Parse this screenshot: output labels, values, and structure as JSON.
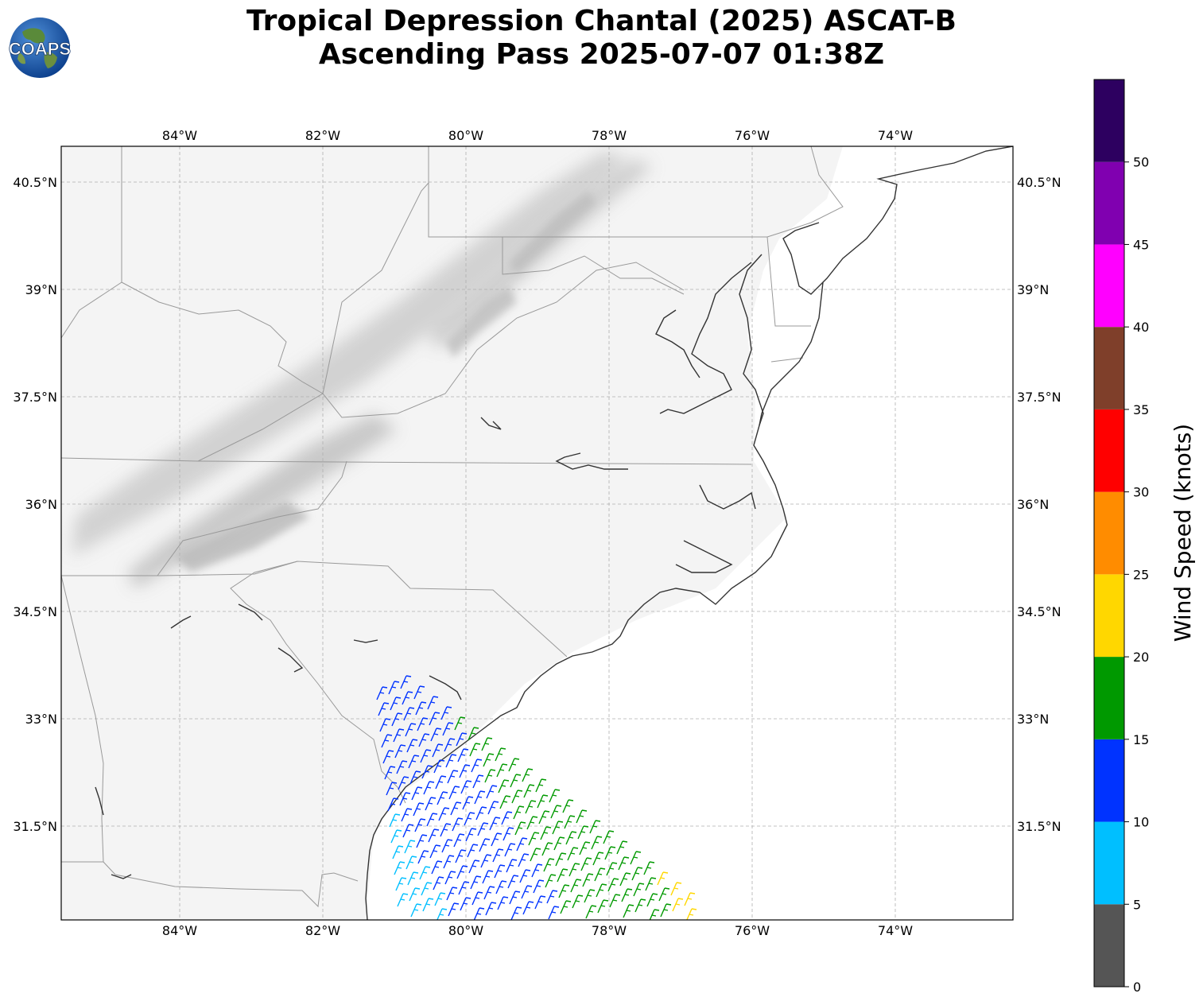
{
  "title": {
    "line1": "Tropical Depression Chantal (2025) ASCAT-B",
    "line2": "Ascending Pass 2025-07-07 01:38Z"
  },
  "logo": {
    "text": "COAPS"
  },
  "map": {
    "lon_range": [
      -85.65,
      -72.35
    ],
    "lat_range": [
      29.65,
      40.75
    ],
    "lon_ticks": [
      "84°W",
      "82°W",
      "80°W",
      "78°W",
      "76°W",
      "74°W"
    ],
    "lat_ticks": [
      "40.5°N",
      "39°N",
      "37.5°N",
      "36°N",
      "34.5°N",
      "33°N",
      "31.5°N"
    ],
    "gridlines": true
  },
  "colorbar": {
    "label": "Wind Speed (knots)",
    "ticks": [
      "0",
      "5",
      "10",
      "15",
      "20",
      "25",
      "30",
      "35",
      "40",
      "45",
      "50"
    ],
    "bins": [
      {
        "from": 0,
        "to": 5,
        "color": "#555555"
      },
      {
        "from": 5,
        "to": 10,
        "color": "#00bfff"
      },
      {
        "from": 10,
        "to": 15,
        "color": "#0033ff"
      },
      {
        "from": 15,
        "to": 20,
        "color": "#009900"
      },
      {
        "from": 20,
        "to": 25,
        "color": "#ffd700"
      },
      {
        "from": 25,
        "to": 30,
        "color": "#ff8c00"
      },
      {
        "from": 30,
        "to": 35,
        "color": "#ff0000"
      },
      {
        "from": 35,
        "to": 40,
        "color": "#7f3f2a"
      },
      {
        "from": 40,
        "to": 45,
        "color": "#ff00ff"
      },
      {
        "from": 45,
        "to": 50,
        "color": "#8000b0"
      },
      {
        "from": 50,
        "to": 55,
        "color": "#2d0060"
      }
    ]
  }
}
